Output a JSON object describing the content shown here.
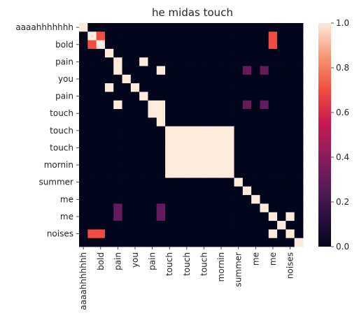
{
  "chart_data": {
    "type": "heatmap",
    "title": "he midas touch",
    "x_tick_labels": [
      "aaaahhhhhhh",
      "bold",
      "pain",
      "you",
      "pain",
      "touch",
      "touch",
      "touch",
      "mornin",
      "summer",
      "me",
      "me",
      "noises"
    ],
    "y_tick_labels": [
      "aaaahhhhhhh",
      "bold",
      "pain",
      "you",
      "pain",
      "touch",
      "touch",
      "touch",
      "mornin",
      "summer",
      "me",
      "me",
      "noises"
    ],
    "n_rows": 26,
    "n_cols": 26,
    "tick_every": 2,
    "value_range": [
      0.0,
      1.0
    ],
    "colormap": "rocket",
    "colorbar_ticks": [
      "0.0",
      "0.2",
      "0.4",
      "0.6",
      "0.8",
      "1.0"
    ],
    "values": [
      [
        1,
        0,
        0,
        0,
        0,
        0,
        0,
        0,
        0,
        0,
        0,
        0,
        0,
        0,
        0,
        0,
        0,
        0,
        0,
        0,
        0,
        0,
        0,
        0,
        0,
        0
      ],
      [
        0,
        1,
        0.7,
        0,
        0,
        0,
        0,
        0,
        0,
        0,
        0,
        0,
        0,
        0,
        0,
        0,
        0,
        0,
        0,
        0,
        0,
        0,
        0.7,
        0,
        0,
        0
      ],
      [
        0,
        0.7,
        1,
        0,
        0,
        0,
        0,
        0,
        0,
        0,
        0,
        0,
        0,
        0,
        0,
        0,
        0,
        0,
        0,
        0,
        0,
        0,
        0.7,
        0,
        0,
        0
      ],
      [
        0,
        0,
        0,
        1,
        0,
        0,
        0,
        0,
        0,
        0,
        0,
        0,
        0,
        0,
        0,
        0,
        0,
        0,
        0,
        0,
        0,
        0,
        0,
        0,
        0,
        0
      ],
      [
        0,
        0,
        0,
        0,
        1,
        0,
        0,
        1,
        0,
        0,
        0,
        0,
        0,
        0,
        0,
        0,
        0,
        0,
        0,
        0,
        0,
        0,
        0,
        0,
        0,
        0
      ],
      [
        0,
        0,
        0,
        0,
        1,
        0,
        0,
        0,
        0,
        1,
        0,
        0,
        0,
        0,
        0,
        0,
        0,
        0,
        0,
        0.3,
        0,
        0.3,
        0,
        0,
        0,
        0
      ],
      [
        0,
        0,
        0,
        0,
        0,
        1,
        0,
        0,
        0,
        0,
        0,
        0,
        0,
        0,
        0,
        0,
        0,
        0,
        0,
        0,
        0,
        0,
        0,
        0,
        0,
        0
      ],
      [
        0,
        0,
        0,
        1,
        0,
        0,
        1,
        0,
        0,
        0,
        0,
        0,
        0,
        0,
        0,
        0,
        0,
        0,
        0,
        0,
        0,
        0,
        0,
        0,
        0,
        0
      ],
      [
        0,
        0,
        0,
        0,
        0,
        0,
        0,
        1,
        0,
        0,
        0,
        0,
        0,
        0,
        0,
        0,
        0,
        0,
        0,
        0,
        0,
        0,
        0,
        0,
        0,
        0
      ],
      [
        0,
        0,
        0,
        0,
        1,
        0,
        0,
        0,
        1,
        1,
        0,
        0,
        0,
        0,
        0,
        0,
        0,
        0,
        0,
        0.3,
        0,
        0.3,
        0,
        0,
        0,
        0
      ],
      [
        0,
        0,
        0,
        0,
        0,
        0,
        0,
        0,
        1,
        1,
        0,
        0,
        0,
        0,
        0,
        0,
        0,
        0,
        0,
        0,
        0,
        0,
        0,
        0,
        0,
        0
      ],
      [
        0,
        0,
        0,
        0,
        0,
        0,
        0,
        0,
        0,
        1,
        0,
        0,
        0,
        0,
        0,
        0,
        0,
        0,
        0,
        0,
        0,
        0,
        0,
        0,
        0,
        0
      ],
      [
        0,
        0,
        0,
        0,
        0,
        0,
        0,
        0,
        0,
        0,
        1,
        1,
        1,
        1,
        1,
        1,
        1,
        1,
        0,
        0,
        0,
        0,
        0,
        0,
        0,
        0
      ],
      [
        0,
        0,
        0,
        0,
        0,
        0,
        0,
        0,
        0,
        0,
        1,
        1,
        1,
        1,
        1,
        1,
        1,
        1,
        0,
        0,
        0,
        0,
        0,
        0,
        0,
        0
      ],
      [
        0,
        0,
        0,
        0,
        0,
        0,
        0,
        0,
        0,
        0,
        1,
        1,
        1,
        1,
        1,
        1,
        1,
        1,
        0,
        0,
        0,
        0,
        0,
        0,
        0,
        0
      ],
      [
        0,
        0,
        0,
        0,
        0,
        0,
        0,
        0,
        0,
        0,
        1,
        1,
        1,
        1,
        1,
        1,
        1,
        1,
        0,
        0,
        0,
        0,
        0,
        0,
        0,
        0
      ],
      [
        0,
        0,
        0,
        0,
        0,
        0,
        0,
        0,
        0,
        0,
        1,
        1,
        1,
        1,
        1,
        1,
        1,
        1,
        0,
        0,
        0,
        0,
        0,
        0,
        0,
        0
      ],
      [
        0,
        0,
        0,
        0,
        0,
        0,
        0,
        0,
        0,
        0,
        1,
        1,
        1,
        1,
        1,
        1,
        1,
        1,
        0,
        0,
        0,
        0,
        0,
        0,
        0,
        0
      ],
      [
        0,
        0,
        0,
        0,
        0,
        0,
        0,
        0,
        0,
        0,
        0,
        0,
        0,
        0,
        0,
        0,
        0,
        0,
        1,
        0,
        0,
        0,
        0,
        0,
        0,
        0
      ],
      [
        0,
        0,
        0,
        0,
        0,
        0,
        0,
        0,
        0,
        0,
        0,
        0,
        0,
        0,
        0,
        0,
        0,
        0,
        0,
        1,
        0,
        0,
        0,
        0,
        0,
        0
      ],
      [
        0,
        0,
        0,
        0,
        0,
        0,
        0,
        0,
        0,
        0,
        0,
        0,
        0,
        0,
        0,
        0,
        0,
        0,
        0,
        0,
        1,
        0,
        0,
        0,
        0,
        0
      ],
      [
        0,
        0,
        0,
        0,
        0.3,
        0,
        0,
        0,
        0,
        0.3,
        0,
        0,
        0,
        0,
        0,
        0,
        0,
        0,
        0,
        0,
        0,
        1,
        0,
        0,
        0,
        0
      ],
      [
        0,
        0,
        0,
        0,
        0.3,
        0,
        0,
        0,
        0,
        0.3,
        0,
        0,
        0,
        0,
        0,
        0,
        0,
        0,
        0,
        0,
        0,
        0,
        1,
        0,
        1,
        0
      ],
      [
        0,
        0,
        0,
        0,
        0,
        0,
        0,
        0,
        0,
        0,
        0,
        0,
        0,
        0,
        0,
        0,
        0,
        0,
        0,
        0,
        0,
        0,
        0,
        1,
        0,
        0
      ],
      [
        0,
        0.7,
        0.7,
        0,
        0,
        0,
        0,
        0,
        0,
        0,
        0,
        0,
        0,
        0,
        0,
        0,
        0,
        0,
        0,
        0,
        0,
        0,
        1,
        0,
        1,
        0
      ],
      [
        0,
        0,
        0,
        0,
        0,
        0,
        0,
        0,
        0,
        0,
        0,
        0,
        0,
        0,
        0,
        0,
        0,
        0,
        0,
        0,
        0,
        0,
        0,
        0,
        0,
        1
      ]
    ]
  }
}
